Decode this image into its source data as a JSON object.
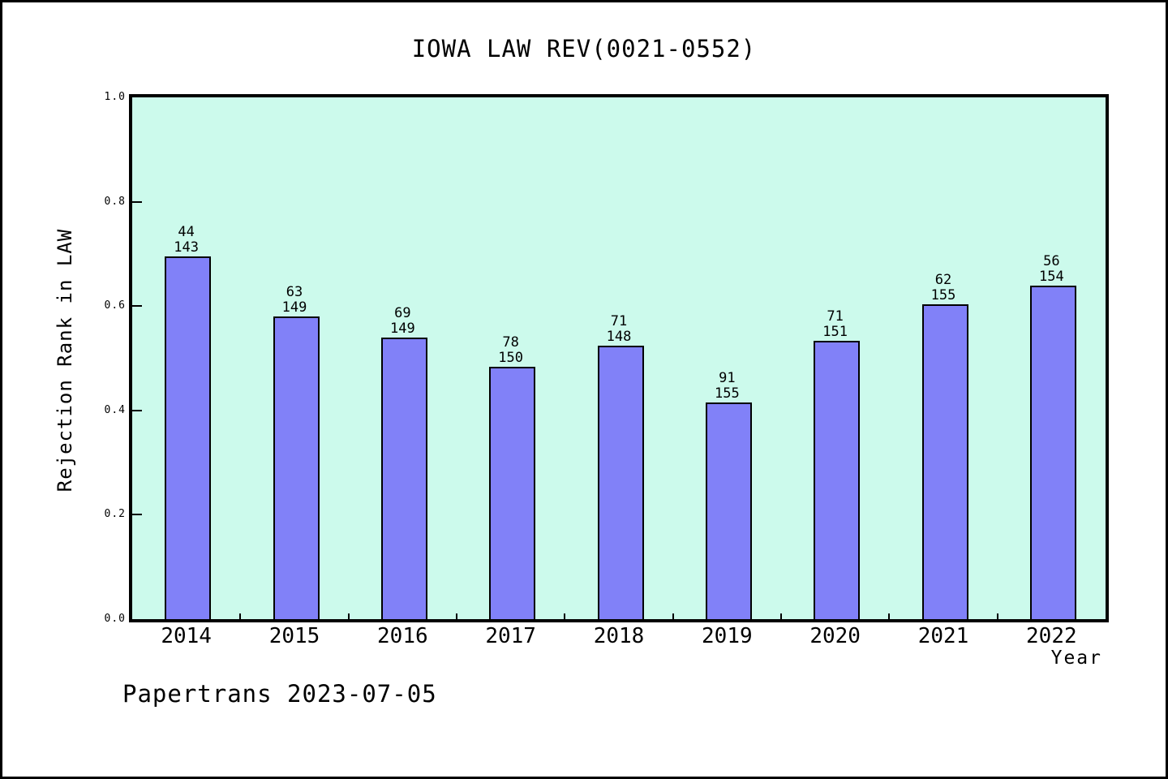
{
  "figure": {
    "watermark": "Papertrans 2023-07-05"
  },
  "chart_data": {
    "type": "bar",
    "title": "IOWA LAW REV(0021-0552)",
    "xlabel": "Year",
    "ylabel": "Rejection Rank in LAW",
    "categories": [
      "2014",
      "2015",
      "2016",
      "2017",
      "2018",
      "2019",
      "2020",
      "2021",
      "2022"
    ],
    "bars": [
      {
        "year": "2014",
        "rank": 44,
        "total": 143,
        "value": 0.6923
      },
      {
        "year": "2015",
        "rank": 63,
        "total": 149,
        "value": 0.5772
      },
      {
        "year": "2016",
        "rank": 69,
        "total": 149,
        "value": 0.5369
      },
      {
        "year": "2017",
        "rank": 78,
        "total": 150,
        "value": 0.48
      },
      {
        "year": "2018",
        "rank": 71,
        "total": 148,
        "value": 0.5203
      },
      {
        "year": "2019",
        "rank": 91,
        "total": 155,
        "value": 0.4129
      },
      {
        "year": "2020",
        "rank": 71,
        "total": 151,
        "value": 0.5298
      },
      {
        "year": "2021",
        "rank": 62,
        "total": 155,
        "value": 0.6
      },
      {
        "year": "2022",
        "rank": 56,
        "total": 154,
        "value": 0.6364
      }
    ],
    "yticks": [
      0.0,
      0.2,
      0.4,
      0.6,
      0.8,
      1.0
    ],
    "ytick_labels": [
      "0.0",
      "0.2",
      "0.4",
      "0.6",
      "0.8",
      "1.0"
    ],
    "ylim": [
      0,
      1
    ],
    "legend": null,
    "grid": false,
    "colors": {
      "bar_fill": "#8181f8",
      "bar_border": "#000000",
      "plot_background": "#ccfaec",
      "axis": "#000000",
      "figure_background": "#ffffff"
    }
  }
}
